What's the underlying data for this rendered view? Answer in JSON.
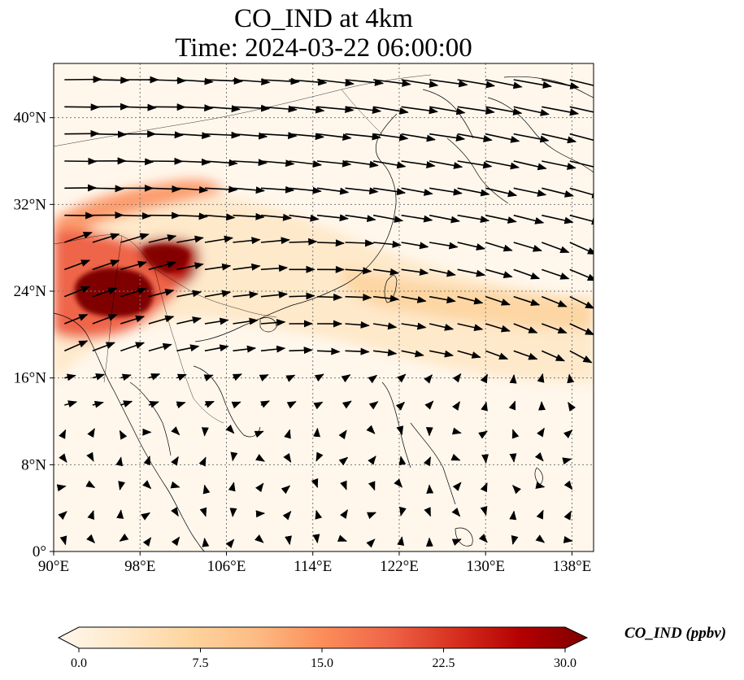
{
  "title_line1": "CO_IND at 4km",
  "title_line2": "Time: 2024-03-22 06:00:00",
  "map": {
    "projection": "PlateCarree",
    "lon_range": [
      90,
      140
    ],
    "lat_range": [
      0,
      45
    ],
    "lon_ticks": [
      90,
      98,
      106,
      114,
      122,
      130,
      138
    ],
    "lon_tick_labels": [
      "90°E",
      "98°E",
      "106°E",
      "114°E",
      "122°E",
      "130°E",
      "138°E"
    ],
    "lat_ticks": [
      0,
      8,
      16,
      24,
      32,
      40
    ],
    "lat_tick_labels": [
      "0°",
      "8°N",
      "16°N",
      "24°N",
      "32°N",
      "40°N"
    ],
    "gridlines": "dotted",
    "field_name": "CO_IND",
    "colormap": "OrRd",
    "plume_core_color": "#7f0000",
    "arrow_color": "#000000"
  },
  "colorbar": {
    "label": "CO_IND (ppbv)",
    "min": 0.0,
    "max": 30.0,
    "ticks": [
      0.0,
      7.5,
      15.0,
      22.5,
      30.0
    ],
    "tick_labels": [
      "0.0",
      "7.5",
      "15.0",
      "22.5",
      "30.0"
    ],
    "extend": "both",
    "colors": [
      "#fff7ec",
      "#fee8c8",
      "#fdd49e",
      "#fdbb84",
      "#fc8d59",
      "#ef6548",
      "#d7301f",
      "#b30000",
      "#7f0000"
    ]
  }
}
